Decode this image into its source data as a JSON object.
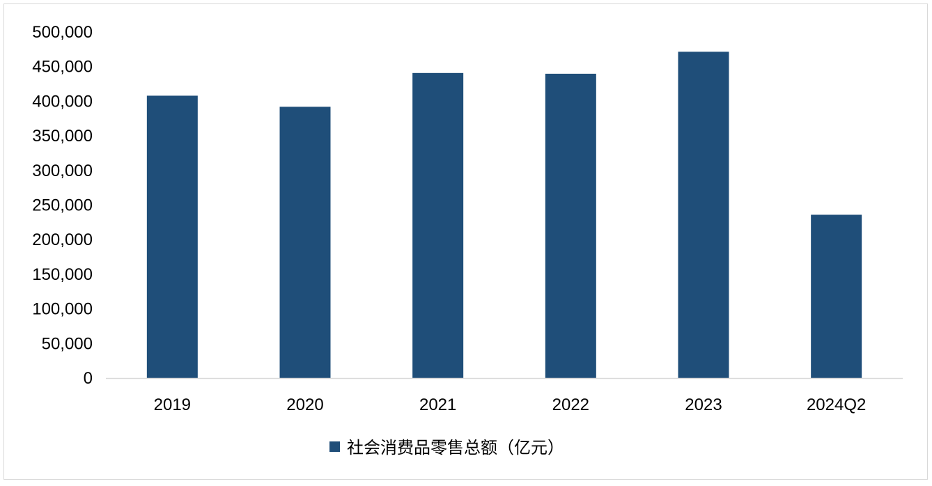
{
  "chart_data": {
    "type": "bar",
    "categories": [
      "2019",
      "2020",
      "2021",
      "2022",
      "2023",
      "2024Q2"
    ],
    "series": [
      {
        "name": "社会消费品零售总额（亿元）",
        "values": [
          408017,
          391981,
          440823,
          439733,
          471495,
          235969
        ],
        "color": "#1F4E79"
      }
    ],
    "ylim": [
      0,
      500000
    ],
    "yticks": [
      0,
      50000,
      100000,
      150000,
      200000,
      250000,
      300000,
      350000,
      400000,
      450000,
      500000
    ],
    "ytick_labels": [
      "0",
      "50,000",
      "100,000",
      "150,000",
      "200,000",
      "250,000",
      "300,000",
      "350,000",
      "400,000",
      "450,000",
      "500,000"
    ],
    "grid": false,
    "legend": "bottom",
    "title": "",
    "xlabel": "",
    "ylabel": ""
  },
  "colors": {
    "bar": "#1F4E79",
    "axis": "#d9d9d9",
    "frame": "#d9d9d9"
  }
}
